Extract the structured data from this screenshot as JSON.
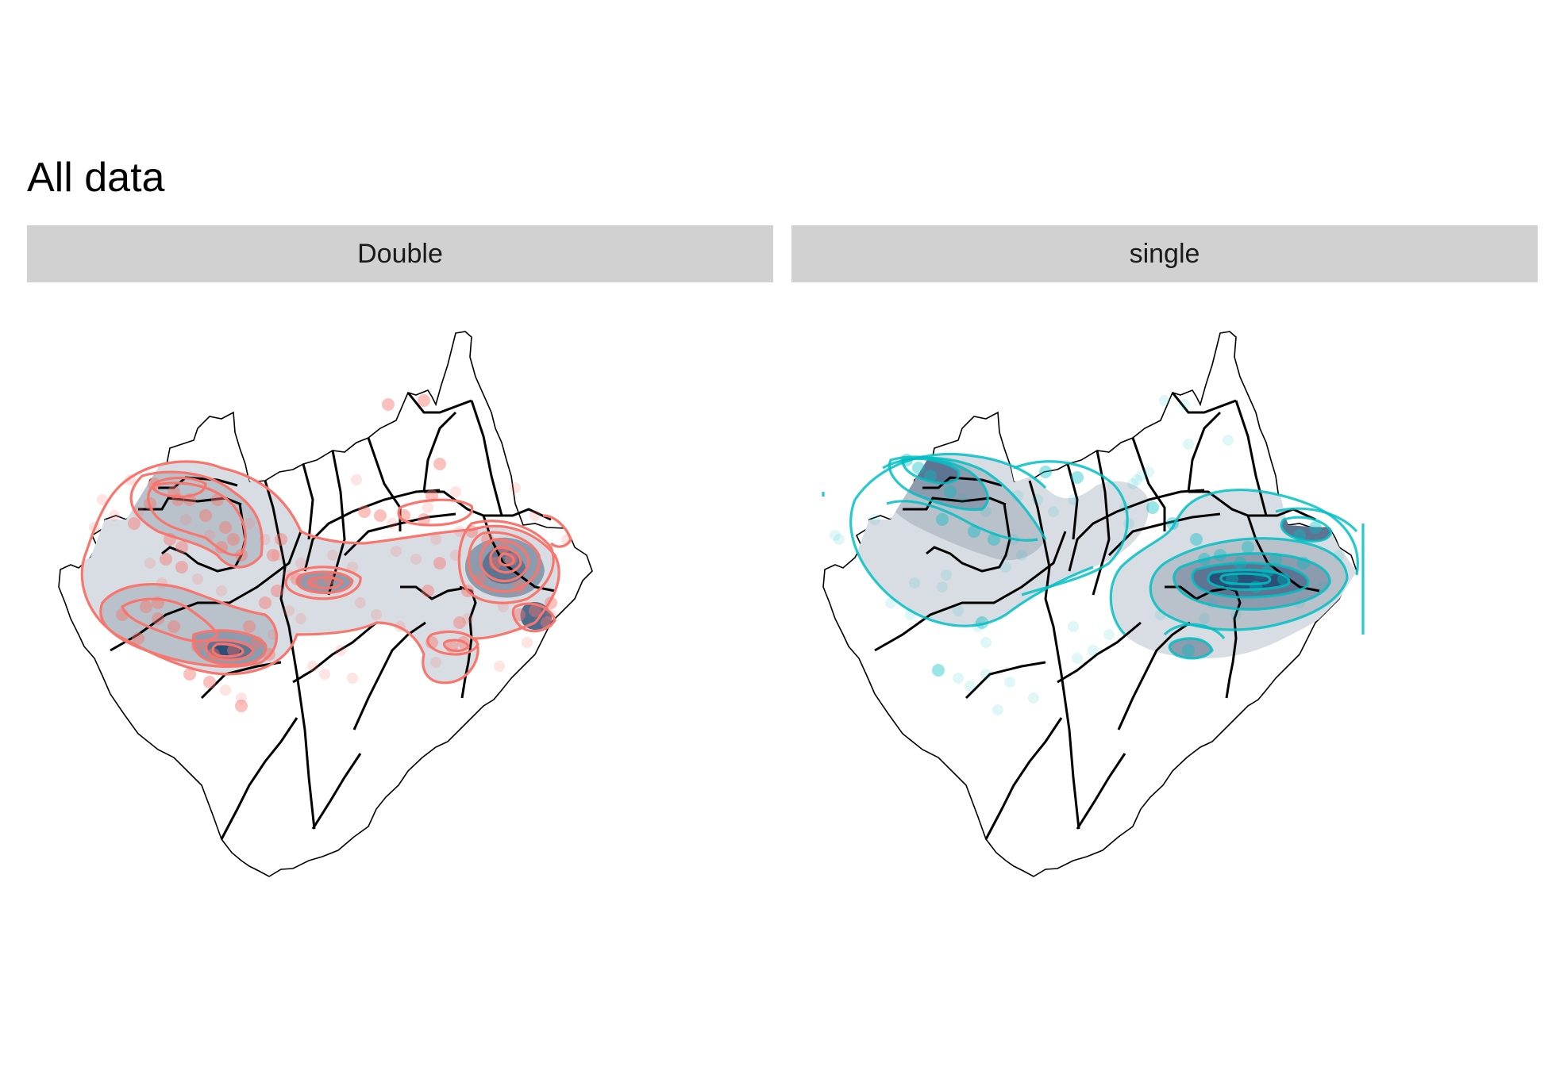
{
  "title": "All data",
  "facets": [
    {
      "label": "Double",
      "color": "#F8766D"
    },
    {
      "label": "single",
      "color": "#00BFC4"
    }
  ],
  "fill_colors": {
    "low": "#d8dde3",
    "high": "#2a4f78"
  }
}
